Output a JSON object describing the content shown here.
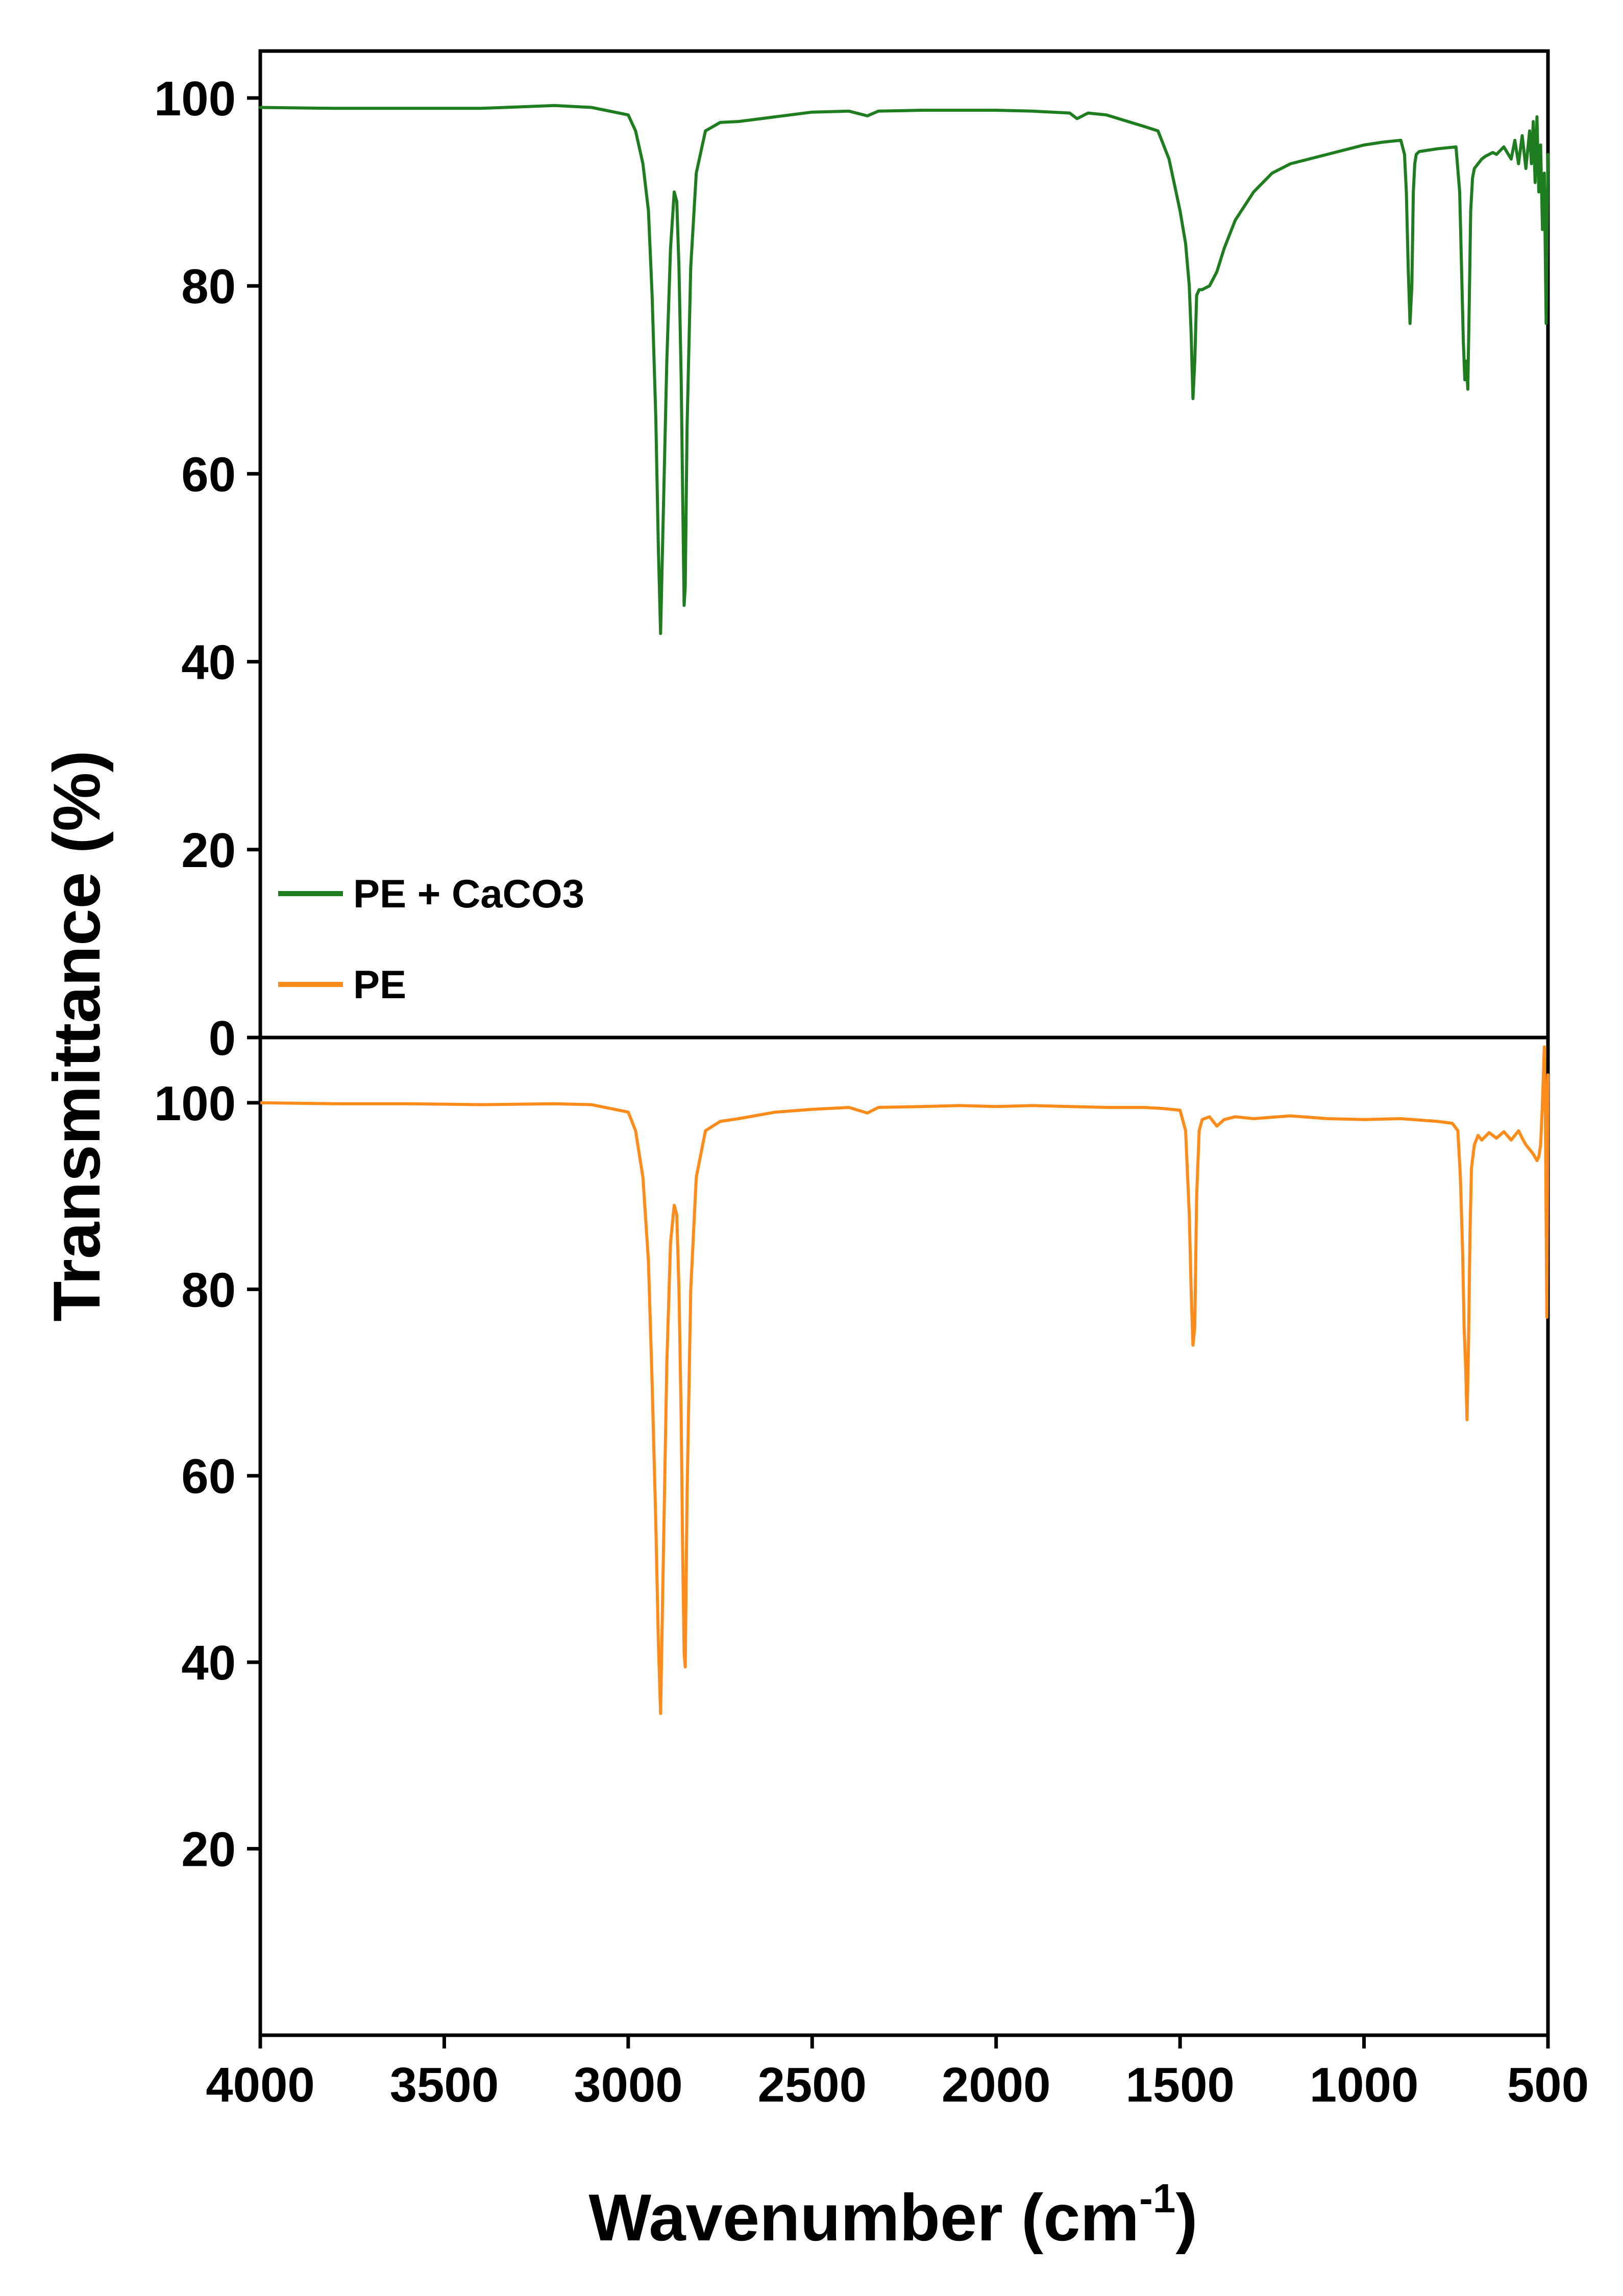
{
  "chart_data": {
    "type": "line",
    "shared_x_axis": {
      "label_main": "Wavenumber (cm",
      "label_sup": "-1",
      "label_close": ")",
      "range": [
        4000,
        500
      ],
      "reversed": true,
      "ticks": [
        4000,
        3500,
        3000,
        2500,
        2000,
        1500,
        1000,
        500
      ],
      "tick_labels": [
        "4000",
        "3500",
        "3000",
        "2500",
        "2000",
        "1500",
        "1000",
        "500"
      ]
    },
    "shared_y_label": "Transmittance (%)",
    "grid": false,
    "legend": {
      "placement": "bottom-left of top panel",
      "entries": [
        {
          "label": "PE + CaCO3",
          "color": "#1e7d1e"
        },
        {
          "label": "PE",
          "color": "#ff8c1a"
        }
      ]
    },
    "panels": [
      {
        "position": "top",
        "ylim": [
          0,
          105
        ],
        "yticks": [
          0,
          20,
          40,
          60,
          80,
          100
        ],
        "ytick_labels": [
          "0",
          "20",
          "40",
          "60",
          "80",
          "100"
        ],
        "series": [
          {
            "name": "PE + CaCO3",
            "color": "#1e7d1e",
            "x": [
              4000,
              3800,
              3600,
              3400,
              3200,
              3100,
              3000,
              2980,
              2960,
              2945,
              2935,
              2925,
              2918,
              2912,
              2905,
              2895,
              2885,
              2875,
              2868,
              2862,
              2856,
              2852,
              2848,
              2845,
              2840,
              2830,
              2815,
              2790,
              2750,
              2700,
              2600,
              2500,
              2400,
              2350,
              2320,
              2200,
              2100,
              2000,
              1900,
              1800,
              1780,
              1750,
              1700,
              1650,
              1600,
              1560,
              1530,
              1500,
              1485,
              1475,
              1470,
              1465,
              1460,
              1455,
              1448,
              1440,
              1420,
              1400,
              1380,
              1350,
              1300,
              1250,
              1200,
              1100,
              1000,
              950,
              900,
              890,
              885,
              880,
              875,
              870,
              866,
              862,
              858,
              850,
              800,
              750,
              740,
              735,
              730,
              726,
              722,
              718,
              714,
              710,
              705,
              700,
              690,
              680,
              670,
              650,
              640,
              620,
              600,
              590,
              580,
              570,
              560,
              550,
              545,
              540,
              535,
              530,
              525,
              520,
              515,
              510,
              505,
              500
            ],
            "y": [
              99.0,
              98.9,
              98.9,
              98.9,
              99.2,
              99.0,
              98.2,
              96.5,
              93.0,
              88.0,
              79.0,
              66.0,
              52.0,
              43.0,
              55.0,
              72.0,
              84.0,
              90.0,
              89.0,
              82.0,
              70.0,
              58.0,
              46.0,
              48.0,
              65.0,
              82.0,
              92.0,
              96.5,
              97.4,
              97.5,
              98.0,
              98.5,
              98.6,
              98.1,
              98.6,
              98.7,
              98.7,
              98.7,
              98.6,
              98.4,
              97.8,
              98.4,
              98.2,
              97.6,
              97.0,
              96.5,
              93.5,
              88.0,
              84.5,
              80.0,
              75.0,
              68.0,
              72.0,
              79.0,
              79.6,
              79.6,
              80.0,
              81.5,
              84.0,
              87.0,
              90.0,
              92.0,
              93.0,
              94.0,
              95.0,
              95.3,
              95.5,
              94.0,
              90.0,
              82.0,
              76.0,
              80.0,
              90.0,
              93.0,
              94.0,
              94.3,
              94.6,
              94.8,
              90.0,
              82.0,
              74.0,
              70.0,
              72.0,
              69.0,
              78.0,
              88.0,
              91.5,
              92.5,
              93.0,
              93.5,
              93.8,
              94.2,
              94.0,
              94.8,
              93.5,
              95.5,
              93.0,
              96.0,
              92.5,
              96.5,
              93.0,
              97.5,
              91.0,
              98.0,
              90.0,
              95.0,
              86.0,
              92.0,
              76.0,
              94.0
            ]
          }
        ]
      },
      {
        "position": "bottom",
        "ylim": [
          0,
          107
        ],
        "yticks": [
          20,
          40,
          60,
          80,
          100
        ],
        "ytick_labels": [
          "20",
          "40",
          "60",
          "80",
          "100"
        ],
        "series": [
          {
            "name": "PE",
            "color": "#ff8c1a",
            "x": [
              4000,
              3800,
              3600,
              3400,
              3200,
              3100,
              3000,
              2980,
              2960,
              2945,
              2935,
              2925,
              2918,
              2912,
              2905,
              2895,
              2885,
              2875,
              2868,
              2862,
              2856,
              2852,
              2848,
              2845,
              2840,
              2830,
              2815,
              2790,
              2750,
              2700,
              2600,
              2500,
              2400,
              2350,
              2320,
              2200,
              2100,
              2000,
              1900,
              1800,
              1700,
              1600,
              1550,
              1500,
              1485,
              1475,
              1470,
              1465,
              1460,
              1455,
              1448,
              1440,
              1420,
              1400,
              1380,
              1350,
              1300,
              1200,
              1100,
              1000,
              900,
              800,
              760,
              745,
              738,
              732,
              728,
              724,
              720,
              716,
              712,
              708,
              700,
              690,
              680,
              660,
              640,
              620,
              600,
              590,
              580,
              570,
              560,
              550,
              540,
              530,
              525,
              520,
              515,
              510,
              507,
              503,
              500
            ],
            "y": [
              100.0,
              99.9,
              99.9,
              99.8,
              99.9,
              99.8,
              99.0,
              97.0,
              92.0,
              83.0,
              70.0,
              55.0,
              42.0,
              34.5,
              50.0,
              72.0,
              85.0,
              89.0,
              88.0,
              80.0,
              66.0,
              52.0,
              41.0,
              39.5,
              58.0,
              80.0,
              92.0,
              97.0,
              98.0,
              98.3,
              99.0,
              99.3,
              99.5,
              98.9,
              99.5,
              99.6,
              99.7,
              99.6,
              99.7,
              99.6,
              99.5,
              99.5,
              99.4,
              99.2,
              97.0,
              88.0,
              80.0,
              74.0,
              76.0,
              90.0,
              97.0,
              98.2,
              98.5,
              97.5,
              98.2,
              98.5,
              98.3,
              98.6,
              98.3,
              98.2,
              98.3,
              98.0,
              97.8,
              97.0,
              92.0,
              84.0,
              76.0,
              72.0,
              66.0,
              74.0,
              86.0,
              93.0,
              95.5,
              96.5,
              96.0,
              96.8,
              96.2,
              96.9,
              96.0,
              96.5,
              97.0,
              96.2,
              95.5,
              95.0,
              94.5,
              93.8,
              94.2,
              95.5,
              100.0,
              106.0,
              98.0,
              77.0,
              103.0
            ]
          }
        ]
      }
    ]
  }
}
